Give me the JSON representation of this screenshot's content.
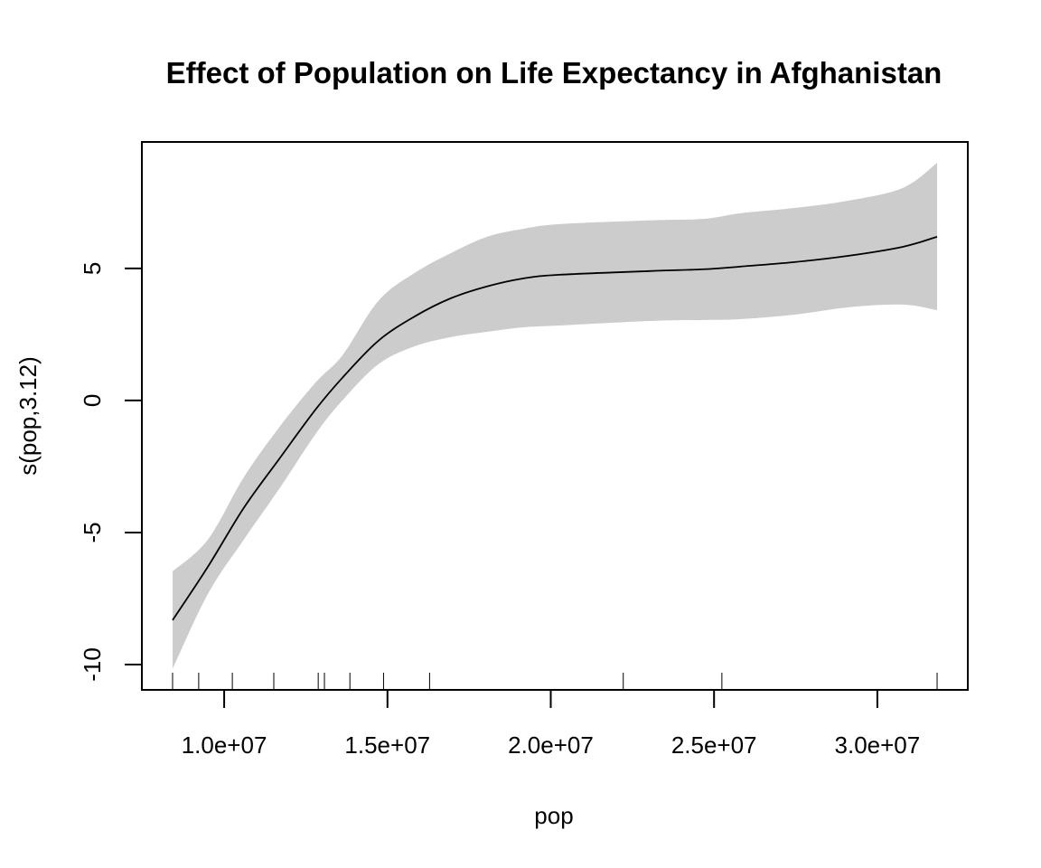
{
  "chart_data": {
    "type": "line",
    "title": "Effect of Population on Life Expectancy in Afghanistan",
    "xlabel": "pop",
    "ylabel": "s(pop,3.12)",
    "xlim": [
      7480000,
      32770000
    ],
    "ylim": [
      -10.96,
      9.79
    ],
    "x_ticks": [
      {
        "value": 10000000,
        "label": "1.0e+07"
      },
      {
        "value": 15000000,
        "label": "1.5e+07"
      },
      {
        "value": 20000000,
        "label": "2.0e+07"
      },
      {
        "value": 25000000,
        "label": "2.5e+07"
      },
      {
        "value": 30000000,
        "label": "3.0e+07"
      }
    ],
    "y_ticks": [
      {
        "value": -10,
        "label": "-10"
      },
      {
        "value": -5,
        "label": "-5"
      },
      {
        "value": 0,
        "label": "0"
      },
      {
        "value": 5,
        "label": "5"
      }
    ],
    "grid": false,
    "legend": "none",
    "colors": {
      "fit_line": "#000000",
      "confidence_band": "#cccccc",
      "axis": "#000000"
    },
    "series": [
      {
        "name": "smooth fit",
        "x": [
          8420000,
          9500000,
          10600000,
          11700000,
          12800000,
          13620000,
          14720000,
          15830000,
          16940000,
          18050000,
          19150000,
          20260000,
          23030000,
          24700000,
          25800000,
          27460000,
          29120000,
          30780000,
          31830000
        ],
        "y": [
          -8.32,
          -6.3,
          -4.07,
          -2.19,
          -0.34,
          0.86,
          2.26,
          3.18,
          3.87,
          4.32,
          4.62,
          4.76,
          4.9,
          4.97,
          5.07,
          5.24,
          5.48,
          5.82,
          6.2
        ]
      },
      {
        "name": "upper confidence band",
        "x": [
          8420000,
          9500000,
          10600000,
          11700000,
          12800000,
          13620000,
          14720000,
          15830000,
          16940000,
          18050000,
          19150000,
          20260000,
          23030000,
          24700000,
          25800000,
          27460000,
          29120000,
          30780000,
          31830000
        ],
        "y": [
          -6.47,
          -5.27,
          -2.91,
          -0.99,
          0.68,
          1.71,
          3.77,
          4.83,
          5.58,
          6.2,
          6.5,
          6.68,
          6.82,
          6.88,
          7.09,
          7.29,
          7.57,
          8.05,
          9.0
        ]
      },
      {
        "name": "lower confidence band",
        "x": [
          8420000,
          9500000,
          10600000,
          11700000,
          12800000,
          13620000,
          14720000,
          15830000,
          16940000,
          18050000,
          19150000,
          20260000,
          23030000,
          24700000,
          25800000,
          27460000,
          29120000,
          30780000,
          31830000
        ],
        "y": [
          -10.17,
          -7.33,
          -5.27,
          -3.32,
          -1.27,
          0.0,
          1.37,
          2.05,
          2.4,
          2.6,
          2.77,
          2.84,
          3.01,
          3.05,
          3.08,
          3.25,
          3.53,
          3.63,
          3.42
        ]
      }
    ],
    "rug": [
      8420000,
      9220000,
      10250000,
      11520000,
      12880000,
      13070000,
      13850000,
      14880000,
      16290000,
      22220000,
      25240000,
      31830000
    ]
  }
}
